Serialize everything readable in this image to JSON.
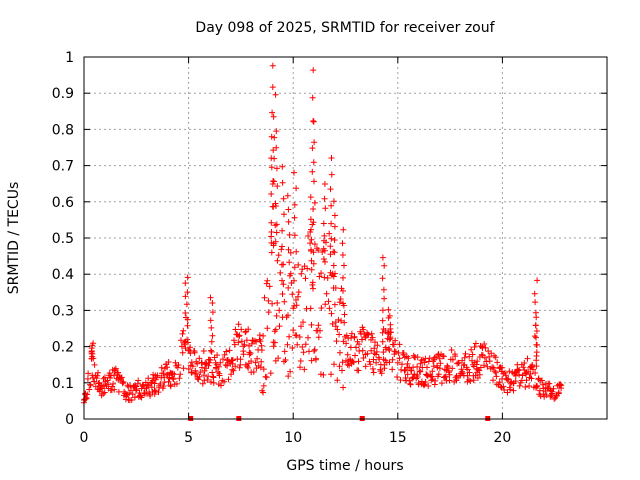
{
  "chart_data": {
    "type": "scatter",
    "title": "Day 098 of 2025, SRMTID for receiver zouf",
    "xlabel": "GPS time / hours",
    "ylabel": "SRMTID / TECUs",
    "xlim": [
      0,
      25
    ],
    "ylim": [
      0,
      1
    ],
    "xticks": [
      0,
      5,
      10,
      15,
      20
    ],
    "yticks": [
      0,
      0.1,
      0.2,
      0.3,
      0.4,
      0.5,
      0.6,
      0.7,
      0.8,
      0.9,
      1
    ],
    "ytick_labels": [
      "0",
      "0.1",
      "0.2",
      "0.3",
      "0.4",
      "0.5",
      "0.6",
      "0.7",
      "0.8",
      "0.9",
      "1"
    ],
    "grid": true,
    "marker": "+",
    "color": "#ff0000",
    "series": [
      {
        "name": "SRMTID",
        "profile": [
          [
            0.0,
            0.05
          ],
          [
            0.2,
            0.1
          ],
          [
            0.4,
            0.15
          ],
          [
            0.6,
            0.1
          ],
          [
            1.0,
            0.09
          ],
          [
            1.5,
            0.12
          ],
          [
            2.0,
            0.07
          ],
          [
            2.5,
            0.08
          ],
          [
            3.0,
            0.09
          ],
          [
            3.5,
            0.1
          ],
          [
            4.0,
            0.12
          ],
          [
            4.5,
            0.14
          ],
          [
            4.9,
            0.22
          ],
          [
            5.2,
            0.15
          ],
          [
            5.6,
            0.14
          ],
          [
            6.0,
            0.15
          ],
          [
            6.5,
            0.13
          ],
          [
            7.0,
            0.15
          ],
          [
            7.3,
            0.2
          ],
          [
            7.7,
            0.21
          ],
          [
            8.0,
            0.17
          ],
          [
            8.5,
            0.18
          ],
          [
            8.8,
            0.25
          ],
          [
            9.0,
            0.38
          ],
          [
            9.3,
            0.3
          ],
          [
            9.7,
            0.27
          ],
          [
            10.0,
            0.3
          ],
          [
            10.4,
            0.26
          ],
          [
            10.8,
            0.33
          ],
          [
            11.2,
            0.3
          ],
          [
            11.7,
            0.33
          ],
          [
            12.2,
            0.26
          ],
          [
            12.6,
            0.18
          ],
          [
            13.0,
            0.18
          ],
          [
            13.5,
            0.2
          ],
          [
            14.0,
            0.16
          ],
          [
            14.5,
            0.2
          ],
          [
            15.0,
            0.16
          ],
          [
            15.5,
            0.14
          ],
          [
            16.0,
            0.13
          ],
          [
            16.5,
            0.13
          ],
          [
            17.0,
            0.14
          ],
          [
            17.5,
            0.15
          ],
          [
            18.0,
            0.14
          ],
          [
            18.5,
            0.15
          ],
          [
            19.0,
            0.17
          ],
          [
            19.4,
            0.15
          ],
          [
            19.8,
            0.13
          ],
          [
            20.3,
            0.1
          ],
          [
            20.8,
            0.12
          ],
          [
            21.3,
            0.13
          ],
          [
            21.7,
            0.1
          ],
          [
            22.0,
            0.08
          ],
          [
            22.5,
            0.07
          ],
          [
            22.8,
            0.08
          ]
        ],
        "spikes": [
          [
            0.4,
            0.21
          ],
          [
            4.9,
            0.39
          ],
          [
            6.1,
            0.34
          ],
          [
            9.0,
            0.98
          ],
          [
            9.1,
            0.9
          ],
          [
            9.2,
            0.8
          ],
          [
            9.0,
            0.74
          ],
          [
            9.5,
            0.7
          ],
          [
            9.8,
            0.62
          ],
          [
            10.1,
            0.68
          ],
          [
            10.9,
            0.96
          ],
          [
            11.0,
            0.82
          ],
          [
            10.9,
            0.58
          ],
          [
            11.8,
            0.72
          ],
          [
            11.5,
            0.65
          ],
          [
            12.0,
            0.6
          ],
          [
            12.4,
            0.52
          ],
          [
            14.3,
            0.45
          ],
          [
            14.6,
            0.3
          ],
          [
            21.6,
            0.38
          ],
          [
            21.6,
            0.28
          ]
        ]
      }
    ],
    "gap_markers_x": [
      5.1,
      7.4,
      13.3,
      19.3
    ]
  }
}
